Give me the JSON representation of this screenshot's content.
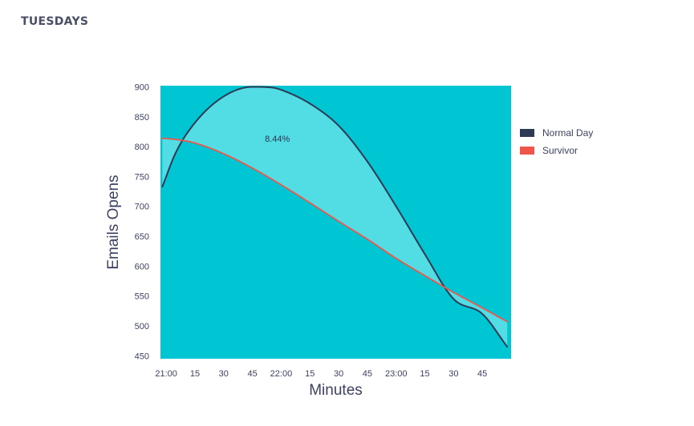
{
  "page": {
    "title": "TUESDAYS"
  },
  "chart_data": {
    "type": "line",
    "xlabel": "Minutes",
    "ylabel": "Emails Opens",
    "x_ticks": [
      "21:00",
      "15",
      "30",
      "45",
      "22:00",
      "15",
      "30",
      "45",
      "23:00",
      "15",
      "30",
      "45"
    ],
    "x_tick_minutes": [
      0,
      15,
      30,
      45,
      60,
      75,
      90,
      105,
      120,
      135,
      150,
      165
    ],
    "xlim": [
      -3,
      180
    ],
    "ylim": [
      445,
      902
    ],
    "y_ticks": [
      900,
      850,
      800,
      750,
      700,
      650,
      600,
      550,
      500,
      450
    ],
    "series": [
      {
        "name": "Normal Day",
        "color": "#2f3a54",
        "x": [
          -2,
          5,
          15,
          30,
          45,
          55,
          60,
          75,
          90,
          105,
          120,
          135,
          150,
          165,
          178
        ],
        "y": [
          733,
          790,
          840,
          884,
          900,
          899,
          895,
          872,
          835,
          775,
          700,
          620,
          545,
          520,
          465
        ]
      },
      {
        "name": "Survivor",
        "color": "#f0554a",
        "x": [
          -2,
          5,
          15,
          30,
          45,
          60,
          75,
          90,
          105,
          120,
          135,
          150,
          165,
          178
        ],
        "y": [
          814,
          812,
          806,
          788,
          764,
          736,
          706,
          675,
          645,
          613,
          584,
          556,
          530,
          507
        ]
      }
    ],
    "annotations": [
      {
        "text": "8.44%",
        "x": 58,
        "y": 808
      }
    ],
    "colors": {
      "plot_background": "#00c6d4",
      "between_fill": "#52dce3"
    },
    "legend": {
      "position": "right"
    }
  }
}
